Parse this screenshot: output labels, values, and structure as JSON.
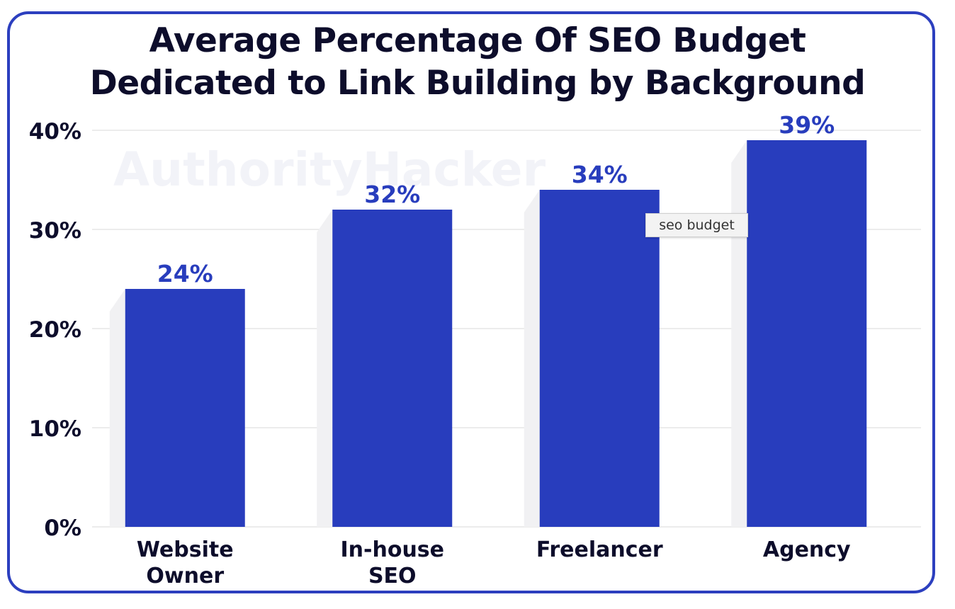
{
  "chart_data": {
    "type": "bar",
    "title_lines": [
      "Average Percentage Of SEO Budget",
      "Dedicated to Link Building by Background"
    ],
    "categories": [
      [
        "Website",
        "Owner"
      ],
      [
        "In-house",
        "SEO"
      ],
      [
        "Freelancer"
      ],
      [
        "Agency"
      ]
    ],
    "values": [
      24,
      32,
      34,
      39
    ],
    "value_labels": [
      "24%",
      "32%",
      "34%",
      "39%"
    ],
    "y_ticks": [
      "0%",
      "10%",
      "20%",
      "30%",
      "40%"
    ],
    "ylim": [
      0,
      40
    ],
    "grid": true,
    "watermark": "AuthorityHacker"
  },
  "colors": {
    "bar": "#283dbd",
    "value_label": "#283dbd",
    "frame_border": "#2c3fbf",
    "text": "#0d0d2b",
    "grid": "#e6e6e6"
  },
  "tooltip": {
    "text": "seo budget"
  }
}
